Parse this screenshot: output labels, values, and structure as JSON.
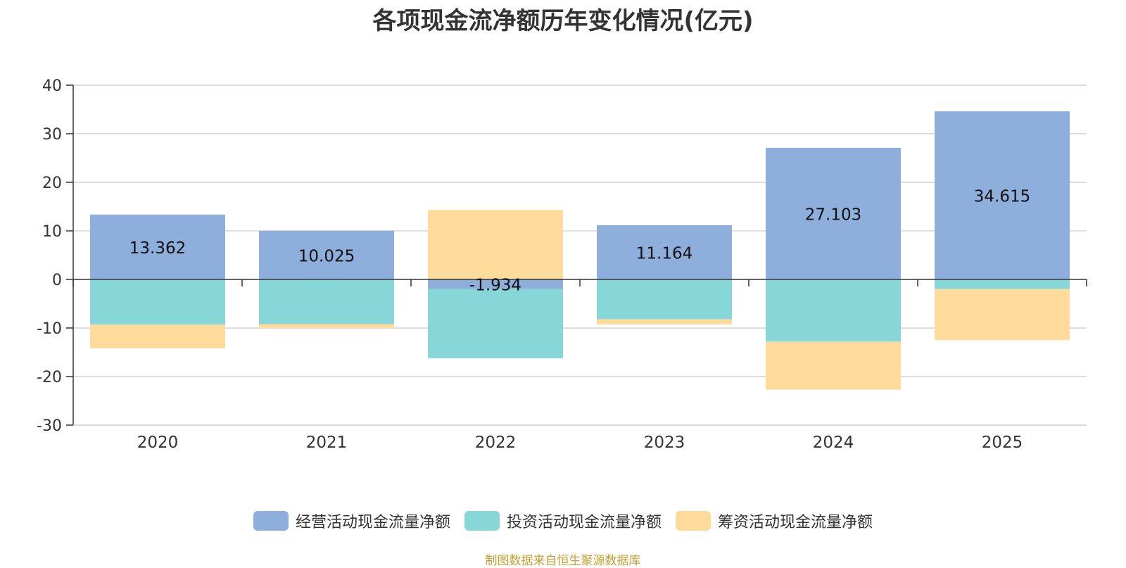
{
  "source_note": "制图数据来自恒生聚源数据库",
  "colors": {
    "operating": "#8eaedb",
    "investing": "#87d7d9",
    "financing": "#fedb9b",
    "axis": "#333333",
    "grid": "#cccccc",
    "text": "#333333",
    "source": "#c8a032"
  },
  "chart_data": {
    "type": "bar",
    "stacked": true,
    "title": "各项现金流净额历年变化情况(亿元)",
    "xlabel": "",
    "ylabel": "",
    "categories": [
      "2020",
      "2021",
      "2022",
      "2023",
      "2024",
      "2025"
    ],
    "ylim": [
      -30,
      40
    ],
    "yticks": [
      40,
      30,
      20,
      10,
      0,
      -10,
      -20,
      -30
    ],
    "grid": true,
    "legend_position": "bottom",
    "series": [
      {
        "name": "经营活动现金流量净额",
        "color_key": "operating",
        "values": [
          13.362,
          10.025,
          -1.934,
          11.164,
          27.103,
          34.615
        ],
        "labels": [
          "13.362",
          "10.025",
          "-1.934",
          "11.164",
          "27.103",
          "34.615"
        ]
      },
      {
        "name": "投资活动现金流量净额",
        "color_key": "investing",
        "values": [
          -9.3,
          -9.2,
          -14.3,
          -8.2,
          -12.8,
          -2.0
        ]
      },
      {
        "name": "筹资活动现金流量净额",
        "color_key": "financing",
        "values": [
          -4.9,
          -0.8,
          14.3,
          -1.1,
          -9.9,
          -10.5
        ]
      }
    ]
  }
}
